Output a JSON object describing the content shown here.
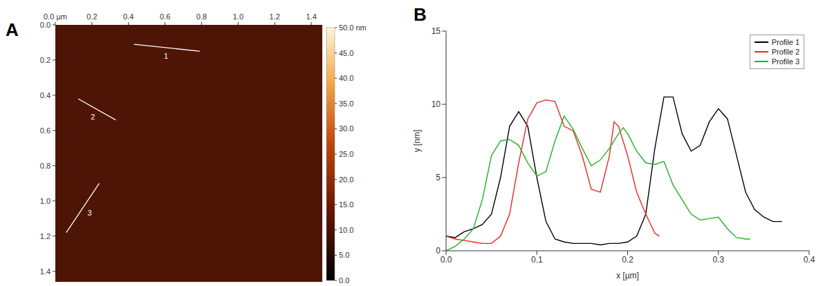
{
  "chart_data": [
    {
      "type": "image",
      "panel_label": "A",
      "xlim": [
        0,
        1.46
      ],
      "ylim": [
        0,
        1.46
      ],
      "xticks": [
        {
          "value": 0,
          "label": "0.0 µm"
        },
        {
          "value": 0.2,
          "label": "0.2"
        },
        {
          "value": 0.4,
          "label": "0.4"
        },
        {
          "value": 0.6,
          "label": "0.6"
        },
        {
          "value": 0.8,
          "label": "0.8"
        },
        {
          "value": 1.0,
          "label": "1.0"
        },
        {
          "value": 1.2,
          "label": "1.2"
        },
        {
          "value": 1.4,
          "label": "1.4"
        }
      ],
      "yticks": [
        {
          "value": 0,
          "label": "0.0"
        },
        {
          "value": 0.2,
          "label": "0.2"
        },
        {
          "value": 0.4,
          "label": "0.4"
        },
        {
          "value": 0.6,
          "label": "0.6"
        },
        {
          "value": 0.8,
          "label": "0.8"
        },
        {
          "value": 1.0,
          "label": "1.0"
        },
        {
          "value": 1.2,
          "label": "1.2"
        },
        {
          "value": 1.4,
          "label": "1.4"
        }
      ],
      "colorbar": {
        "range": [
          0,
          50
        ],
        "ticks": [
          {
            "value": 0,
            "label": "0.0"
          },
          {
            "value": 5,
            "label": "5.0"
          },
          {
            "value": 10,
            "label": "10.0"
          },
          {
            "value": 15,
            "label": "15.0"
          },
          {
            "value": 20,
            "label": "20.0"
          },
          {
            "value": 25,
            "label": "25.0"
          },
          {
            "value": 30,
            "label": "30.0"
          },
          {
            "value": 35,
            "label": "35.0"
          },
          {
            "value": 40,
            "label": "40.0"
          },
          {
            "value": 45,
            "label": "45.0"
          },
          {
            "value": 50,
            "label": "50.0 nm"
          }
        ]
      },
      "profiles": [
        {
          "label": "1",
          "start": [
            0.43,
            0.11
          ],
          "end": [
            0.79,
            0.15
          ]
        },
        {
          "label": "2",
          "start": [
            0.125,
            0.42
          ],
          "end": [
            0.33,
            0.54
          ]
        },
        {
          "label": "3",
          "start": [
            0.24,
            0.9
          ],
          "end": [
            0.06,
            1.18
          ]
        }
      ]
    },
    {
      "type": "line",
      "panel_label": "B",
      "x_label": "x [µm]",
      "y_label": "y [nm]",
      "xlim": [
        0,
        0.4
      ],
      "ylim": [
        0,
        15
      ],
      "xticks": [
        {
          "value": 0,
          "label": "0.0"
        },
        {
          "value": 0.1,
          "label": "0.1"
        },
        {
          "value": 0.2,
          "label": "0.2"
        },
        {
          "value": 0.3,
          "label": "0.3"
        },
        {
          "value": 0.4,
          "label": "0.4"
        }
      ],
      "yticks": [
        0,
        5,
        10,
        15
      ],
      "legend": "top right",
      "series": [
        {
          "name": "Profile 1",
          "color": "#000000",
          "x": [
            0,
            0.01,
            0.02,
            0.03,
            0.04,
            0.05,
            0.06,
            0.07,
            0.08,
            0.09,
            0.1,
            0.11,
            0.12,
            0.13,
            0.14,
            0.15,
            0.16,
            0.17,
            0.18,
            0.19,
            0.2,
            0.21,
            0.22,
            0.23,
            0.24,
            0.25,
            0.26,
            0.27,
            0.28,
            0.29,
            0.3,
            0.31,
            0.32,
            0.33,
            0.34,
            0.35,
            0.36,
            0.37
          ],
          "values": [
            1.0,
            0.9,
            1.3,
            1.5,
            1.8,
            2.5,
            5.0,
            8.5,
            9.5,
            8.5,
            5.0,
            2.0,
            0.8,
            0.6,
            0.5,
            0.5,
            0.5,
            0.4,
            0.5,
            0.5,
            0.6,
            1.0,
            2.5,
            7.0,
            10.5,
            10.5,
            8.0,
            6.8,
            7.2,
            8.8,
            9.7,
            9.0,
            6.5,
            4.0,
            2.8,
            2.3,
            2.0,
            2.0
          ]
        },
        {
          "name": "Profile 2",
          "color": "#e8281e",
          "x": [
            0,
            0.01,
            0.02,
            0.03,
            0.04,
            0.05,
            0.06,
            0.07,
            0.08,
            0.09,
            0.1,
            0.11,
            0.12,
            0.13,
            0.14,
            0.15,
            0.16,
            0.17,
            0.18,
            0.185,
            0.19,
            0.2,
            0.21,
            0.22,
            0.23,
            0.235
          ],
          "values": [
            1.0,
            0.8,
            0.7,
            0.6,
            0.5,
            0.5,
            1.0,
            2.5,
            6.0,
            9.0,
            10.1,
            10.3,
            10.2,
            8.5,
            8.2,
            6.5,
            4.2,
            4.0,
            6.5,
            8.8,
            8.5,
            6.5,
            4.0,
            2.5,
            1.2,
            1.0
          ]
        },
        {
          "name": "Profile 3",
          "color": "#22b022",
          "x": [
            0,
            0.01,
            0.02,
            0.03,
            0.04,
            0.05,
            0.06,
            0.07,
            0.08,
            0.09,
            0.1,
            0.11,
            0.12,
            0.13,
            0.14,
            0.15,
            0.16,
            0.17,
            0.18,
            0.19,
            0.195,
            0.2,
            0.21,
            0.22,
            0.23,
            0.24,
            0.25,
            0.26,
            0.27,
            0.28,
            0.29,
            0.3,
            0.31,
            0.32,
            0.33,
            0.335
          ],
          "values": [
            0.0,
            0.3,
            0.8,
            1.5,
            3.5,
            6.5,
            7.5,
            7.6,
            7.2,
            6.0,
            5.1,
            5.4,
            7.5,
            9.2,
            8.3,
            7.0,
            5.8,
            6.2,
            7.0,
            8.0,
            8.4,
            8.0,
            6.8,
            6.0,
            5.9,
            6.1,
            4.5,
            3.5,
            2.5,
            2.1,
            2.2,
            2.3,
            1.5,
            0.9,
            0.8,
            0.8
          ]
        }
      ]
    }
  ]
}
